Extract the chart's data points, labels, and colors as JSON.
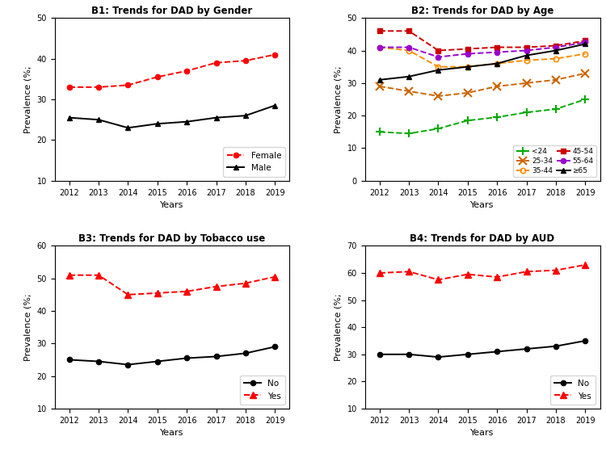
{
  "years": [
    2012,
    2013,
    2014,
    2015,
    2016,
    2017,
    2018,
    2019
  ],
  "b1_female": [
    33,
    33,
    33.5,
    35.5,
    37,
    39,
    39.5,
    41
  ],
  "b1_male": [
    25.5,
    25,
    23,
    24,
    24.5,
    25.5,
    26,
    28.5
  ],
  "b2_lt24": [
    15,
    14.5,
    16,
    18.5,
    19.5,
    21,
    22,
    25
  ],
  "b2_25_34": [
    29,
    27.5,
    26,
    27,
    29,
    30,
    31,
    33
  ],
  "b2_35_44": [
    41,
    40,
    35,
    35,
    36,
    37,
    37.5,
    39
  ],
  "b2_45_54": [
    46,
    46,
    40,
    40.5,
    41,
    41,
    41.5,
    43
  ],
  "b2_55_64": [
    41,
    41,
    38,
    39,
    39.5,
    40,
    41,
    42.5
  ],
  "b2_ge65": [
    31,
    32,
    34,
    35,
    36,
    38.5,
    40,
    42
  ],
  "b3_no": [
    25,
    24.5,
    23.5,
    24.5,
    25.5,
    26,
    27,
    29
  ],
  "b3_yes": [
    51,
    51,
    45,
    45.5,
    46,
    47.5,
    48.5,
    50.5
  ],
  "b4_no": [
    30,
    30,
    29,
    30,
    31,
    32,
    33,
    35
  ],
  "b4_yes": [
    60,
    60.5,
    57.5,
    59.5,
    58.5,
    60.5,
    61,
    63
  ],
  "ylabel": "Prevalence (%;",
  "b1_ylim": [
    10,
    50
  ],
  "b2_ylim": [
    0,
    50
  ],
  "b3_ylim": [
    10,
    60
  ],
  "b4_ylim": [
    10,
    70
  ],
  "color_red": "#FF0000",
  "color_black": "#000000",
  "color_green": "#00AA00",
  "color_orange_x": "#CC6600",
  "color_orange_o": "#FF8C00",
  "color_purple": "#9900CC",
  "color_darkred": "#CC0000"
}
